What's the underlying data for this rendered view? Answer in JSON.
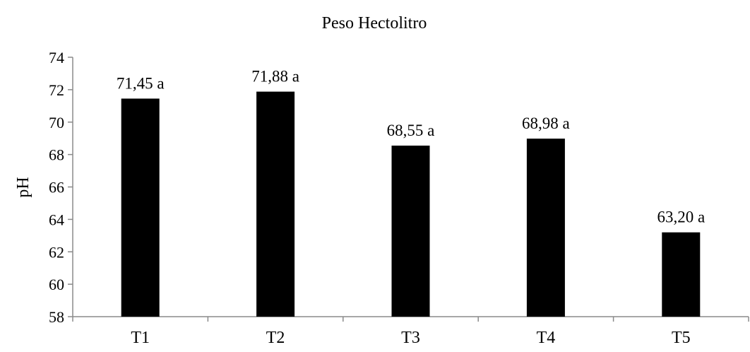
{
  "chart_data": {
    "type": "bar",
    "title": "Peso Hectolitro",
    "xlabel": "",
    "ylabel": "pH",
    "categories": [
      "T1",
      "T2",
      "T3",
      "T4",
      "T5"
    ],
    "values": [
      71.45,
      71.88,
      68.55,
      68.98,
      63.2
    ],
    "data_labels": [
      "71,45 a",
      "71,88 a",
      "68,55 a",
      "68,98 a",
      "63,20 a"
    ],
    "ylim": [
      58,
      74
    ],
    "yticks": [
      58,
      60,
      62,
      64,
      66,
      68,
      70,
      72,
      74
    ],
    "grid": false,
    "legend": "none",
    "bar_color": "#000000"
  }
}
